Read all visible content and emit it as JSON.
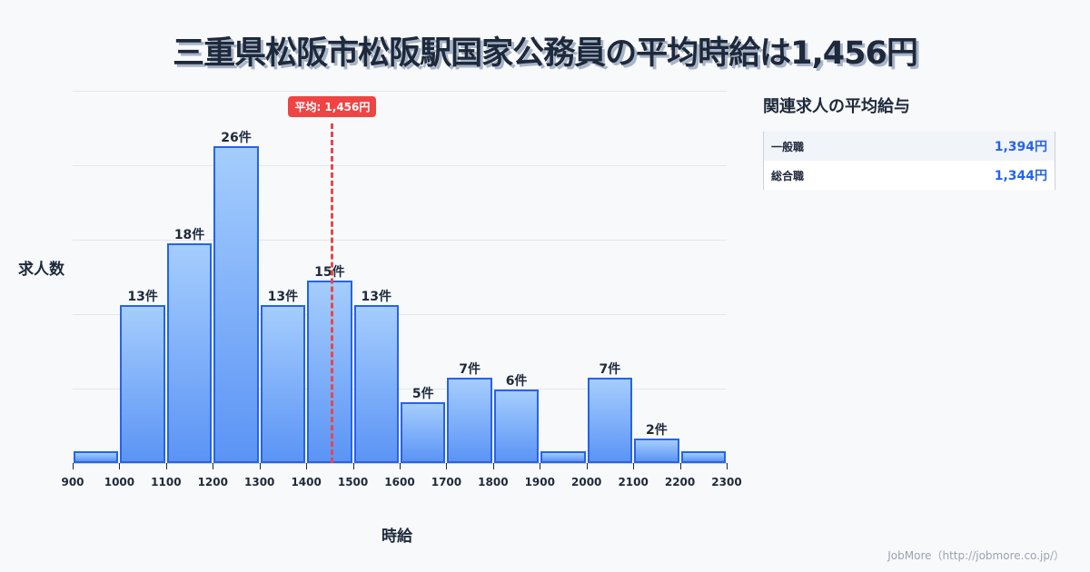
{
  "title": "三重県松阪市松阪駅国家公務員の平均時給は1,456円",
  "chart_data": {
    "type": "bar",
    "title": "三重県松阪市松阪駅国家公務員の平均時給は1,456円",
    "xlabel": "時給",
    "ylabel": "求人数",
    "bins": [
      900,
      1000,
      1100,
      1200,
      1300,
      1400,
      1500,
      1600,
      1700,
      1800,
      1900,
      2000,
      2100,
      2200,
      2300
    ],
    "categories": [
      "900-1000",
      "1000-1100",
      "1100-1200",
      "1200-1300",
      "1300-1400",
      "1400-1500",
      "1500-1600",
      "1600-1700",
      "1700-1800",
      "1800-1900",
      "1900-2000",
      "2000-2100",
      "2100-2200",
      "2200-2300"
    ],
    "values": [
      1,
      13,
      18,
      26,
      13,
      15,
      13,
      5,
      7,
      6,
      1,
      7,
      2,
      1
    ],
    "value_labels": [
      "",
      "13件",
      "18件",
      "26件",
      "13件",
      "15件",
      "13件",
      "5件",
      "7件",
      "6件",
      "",
      "7件",
      "2件",
      ""
    ],
    "x_ticks": [
      "900",
      "1000",
      "1100",
      "1200",
      "1300",
      "1400",
      "1500",
      "1600",
      "1700",
      "1800",
      "1900",
      "2000",
      "2100",
      "2200",
      "2300"
    ],
    "mean": 1456,
    "mean_label": "平均: 1,456円",
    "grid": true,
    "colors": {
      "bar_border": "#2563eb",
      "bar_top": "#a5cdfd",
      "bar_bottom": "#5b94f5",
      "mean_line": "#e5484d"
    }
  },
  "side_panel": {
    "title": "関連求人の平均給与",
    "rows": [
      {
        "name": "一般職",
        "value": "1,394円"
      },
      {
        "name": "総合職",
        "value": "1,344円"
      }
    ]
  },
  "footer": "JobMore（http://jobmore.co.jp/）"
}
